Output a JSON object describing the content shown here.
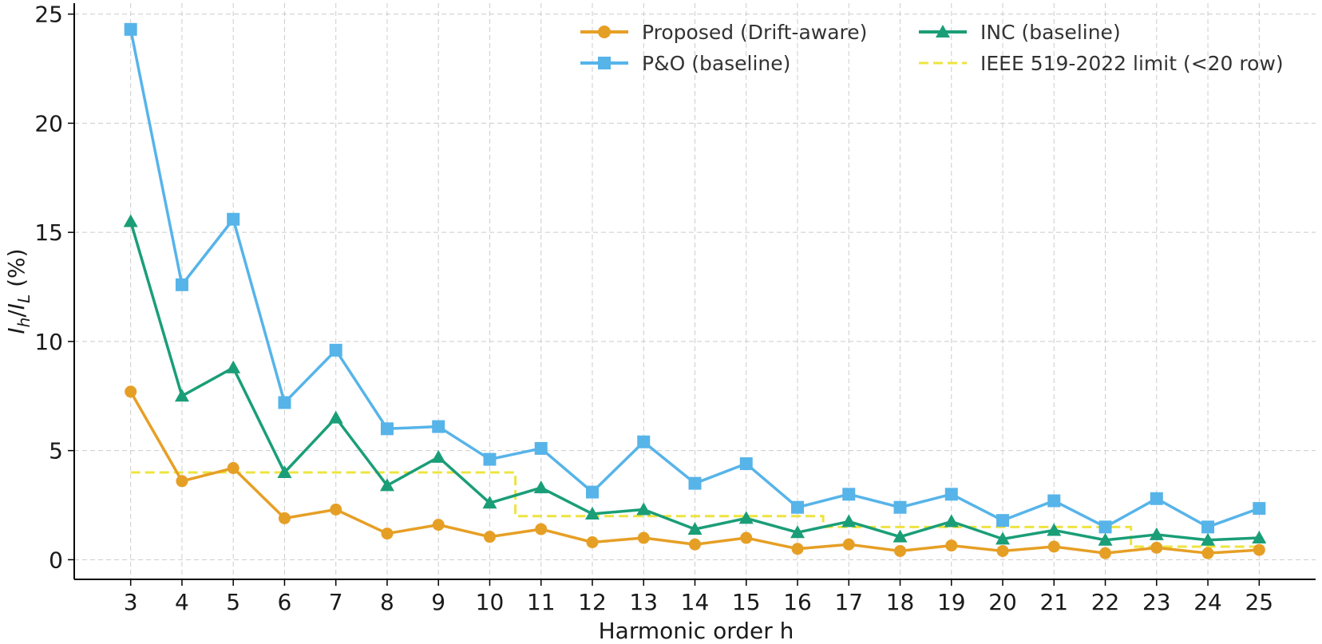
{
  "chart_data": {
    "type": "line",
    "title": "",
    "xlabel": "Harmonic order h",
    "ylabel": {
      "i1": "I",
      "sub1": "h",
      "slash": "/",
      "i2": "I",
      "sub2": "L",
      "unit": " (%)"
    },
    "x": [
      3,
      4,
      5,
      6,
      7,
      8,
      9,
      10,
      11,
      12,
      13,
      14,
      15,
      16,
      17,
      18,
      19,
      20,
      21,
      22,
      23,
      24,
      25
    ],
    "xlim": [
      1.9,
      26.1
    ],
    "ylim": [
      -0.9,
      25.5
    ],
    "yticks": [
      0,
      5,
      10,
      15,
      20,
      25
    ],
    "grid": true,
    "legend_position": "top-right",
    "series": [
      {
        "name": "Proposed (Drift-aware)",
        "color": "#E69F25",
        "marker": "circle",
        "values": [
          7.7,
          3.6,
          4.2,
          1.9,
          2.3,
          1.2,
          1.6,
          1.05,
          1.4,
          0.8,
          1.0,
          0.7,
          1.0,
          0.5,
          0.7,
          0.4,
          0.65,
          0.4,
          0.6,
          0.3,
          0.55,
          0.3,
          0.45
        ]
      },
      {
        "name": "P&O (baseline)",
        "color": "#56B4E9",
        "marker": "square",
        "values": [
          24.3,
          12.6,
          15.6,
          7.2,
          9.6,
          6.0,
          6.1,
          4.6,
          5.1,
          3.1,
          5.4,
          3.5,
          4.4,
          2.4,
          3.0,
          2.4,
          3.0,
          1.8,
          2.7,
          1.5,
          2.8,
          1.5,
          2.35
        ]
      },
      {
        "name": "INC (baseline)",
        "color": "#1A9E77",
        "marker": "triangle",
        "values": [
          15.5,
          7.5,
          8.8,
          4.0,
          6.5,
          3.4,
          4.7,
          2.6,
          3.3,
          2.1,
          2.3,
          1.4,
          1.9,
          1.25,
          1.75,
          1.05,
          1.75,
          0.95,
          1.35,
          0.9,
          1.15,
          0.9,
          1.0
        ]
      }
    ],
    "limit_line": {
      "name": "IEEE 519-2022 limit (<20 row)",
      "color": "#EDE440",
      "style": "dashed",
      "segments": [
        {
          "x_from": 3,
          "x_to": 10.5,
          "value": 4.0
        },
        {
          "x_from": 10.5,
          "x_to": 16.5,
          "value": 2.0
        },
        {
          "x_from": 16.5,
          "x_to": 22.5,
          "value": 1.5
        },
        {
          "x_from": 22.5,
          "x_to": 25,
          "value": 0.6
        }
      ]
    }
  }
}
